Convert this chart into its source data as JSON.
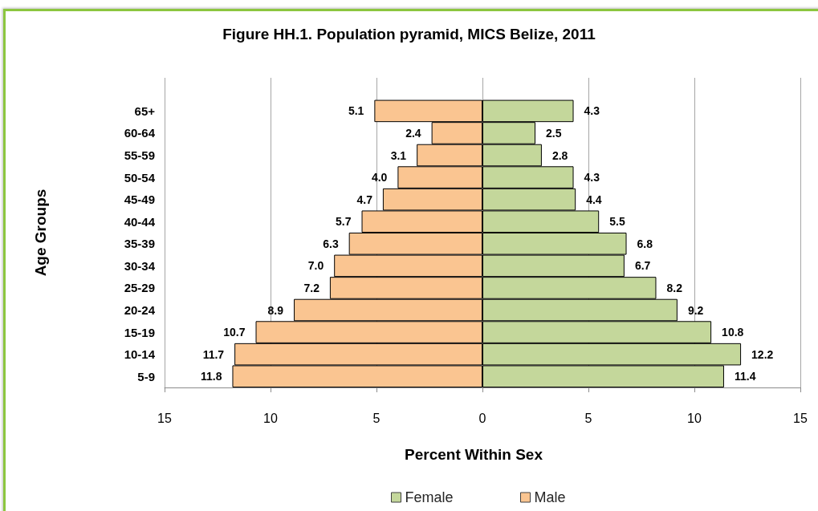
{
  "chart_data": [
    {
      "type": "bar",
      "orientation": "horizontal",
      "title": "Figure HH.1. Population pyramid, MICS Belize, 2011",
      "xlabel": "Percent Within Sex",
      "ylabel": "Age Groups",
      "categories": [
        null,
        "65+",
        "60-64",
        "55-59",
        "50-54",
        "45-49",
        "40-44",
        "35-39",
        "30-34",
        "25-29",
        "20-24",
        "15-19",
        "10-14",
        "5-9"
      ],
      "series": [
        {
          "name": "Male",
          "color": "#fac591",
          "values": [
            null,
            5.1,
            2.4,
            3.1,
            4.0,
            4.7,
            5.7,
            6.3,
            7.0,
            7.2,
            8.9,
            10.7,
            11.7,
            11.8
          ],
          "value_labels": [
            null,
            "5.1",
            "2.4",
            "3.1",
            "4.0",
            "4.7",
            "5.7",
            "6.3",
            "7.0",
            "7.2",
            "8.9",
            "10.7",
            "11.7",
            "11.8"
          ]
        }
      ],
      "xlim": [
        15,
        0
      ],
      "xticks": [
        15,
        10,
        5,
        {
          "value": 0,
          "label": null
        }
      ],
      "grid": "x",
      "legend": "bottom"
    },
    {
      "type": "bar",
      "orientation": "horizontal",
      "categories": [
        null,
        null,
        null,
        null,
        null,
        null,
        null,
        null,
        null,
        null,
        null,
        null,
        null,
        null
      ],
      "series": [
        {
          "name": "Female",
          "color": "#c4d79b",
          "values": [
            null,
            4.3,
            2.5,
            2.8,
            4.3,
            4.4,
            5.5,
            6.8,
            6.7,
            8.2,
            9.2,
            10.8,
            12.2,
            11.4
          ],
          "value_labels": [
            null,
            "4.3",
            "2.5",
            "2.8",
            "4.3",
            "4.4",
            "5.5",
            "6.8",
            "6.7",
            "8.2",
            "9.2",
            "10.8",
            "12.2",
            "11.4"
          ]
        }
      ],
      "xlim": [
        0,
        15
      ],
      "xticks": [
        0,
        5,
        10,
        15
      ],
      "grid": "x",
      "legend": "bottom"
    }
  ]
}
